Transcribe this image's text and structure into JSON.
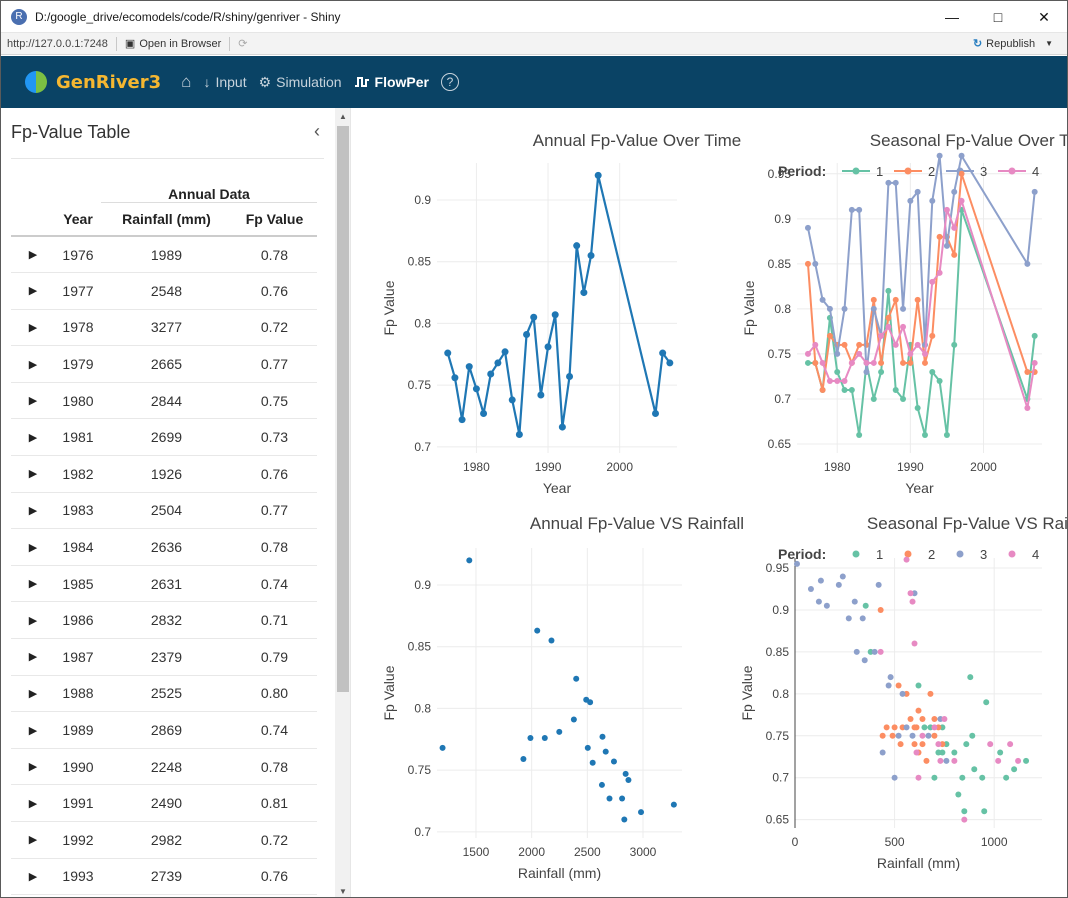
{
  "window": {
    "title": "D:/google_drive/ecomodels/code/R/shiny/genriver - Shiny",
    "url": "http://127.0.0.1:7248",
    "open_in_browser": "Open in Browser",
    "republish": "Republish"
  },
  "navbar": {
    "brand_a": "Gen",
    "brand_b": "River3",
    "items": [
      {
        "label": "Input",
        "icon": "arrow-down-icon"
      },
      {
        "label": "Simulation",
        "icon": "gears-icon"
      },
      {
        "label": "FlowPer",
        "icon": "wave-icon",
        "active": true
      }
    ],
    "help": "?"
  },
  "sidebar": {
    "title": "Fp-Value Table",
    "table": {
      "group_header": "Annual Data",
      "columns": [
        "Year",
        "Rainfall (mm)",
        "Fp Value"
      ],
      "rows": [
        [
          "1976",
          "1989",
          "0.78"
        ],
        [
          "1977",
          "2548",
          "0.76"
        ],
        [
          "1978",
          "3277",
          "0.72"
        ],
        [
          "1979",
          "2665",
          "0.77"
        ],
        [
          "1980",
          "2844",
          "0.75"
        ],
        [
          "1981",
          "2699",
          "0.73"
        ],
        [
          "1982",
          "1926",
          "0.76"
        ],
        [
          "1983",
          "2504",
          "0.77"
        ],
        [
          "1984",
          "2636",
          "0.78"
        ],
        [
          "1985",
          "2631",
          "0.74"
        ],
        [
          "1986",
          "2832",
          "0.71"
        ],
        [
          "1987",
          "2379",
          "0.79"
        ],
        [
          "1988",
          "2525",
          "0.80"
        ],
        [
          "1989",
          "2869",
          "0.74"
        ],
        [
          "1990",
          "2248",
          "0.78"
        ],
        [
          "1991",
          "2490",
          "0.81"
        ],
        [
          "1992",
          "2982",
          "0.72"
        ],
        [
          "1993",
          "2739",
          "0.76"
        ]
      ]
    }
  },
  "colors": {
    "navbar": "#0a4365",
    "line_blue": "#1f77b4",
    "p1": "#66c2a5",
    "p2": "#fc8d62",
    "p3": "#8da0cb",
    "p4": "#e78ac3"
  },
  "chart_data": [
    {
      "id": "annual_time",
      "type": "line",
      "title": "Annual Fp-Value Over Time",
      "xlabel": "Year",
      "ylabel": "Fp Value",
      "xlim": [
        1974.5,
        2008
      ],
      "ylim": [
        0.695,
        0.93
      ],
      "xticks": [
        1980,
        1990,
        2000
      ],
      "yticks": [
        0.7,
        0.75,
        0.8,
        0.85,
        0.9
      ],
      "x": [
        1976,
        1977,
        1978,
        1979,
        1980,
        1981,
        1982,
        1983,
        1984,
        1985,
        1986,
        1987,
        1988,
        1989,
        1990,
        1991,
        1992,
        1993,
        1994,
        1995,
        1996,
        1997,
        2005,
        2006,
        2007
      ],
      "y": [
        0.776,
        0.756,
        0.722,
        0.765,
        0.747,
        0.727,
        0.759,
        0.768,
        0.777,
        0.738,
        0.71,
        0.791,
        0.805,
        0.742,
        0.781,
        0.807,
        0.716,
        0.757,
        0.863,
        0.825,
        0.855,
        0.92,
        0.727,
        0.776,
        0.768
      ]
    },
    {
      "id": "seasonal_time",
      "type": "line",
      "title": "Seasonal Fp-Value Over Time",
      "xlabel": "Year",
      "ylabel": "Fp Value",
      "legend_title": "Period:",
      "xlim": [
        1974.5,
        2008
      ],
      "ylim": [
        0.64,
        0.962
      ],
      "xticks": [
        1980,
        1990,
        2000
      ],
      "yticks": [
        0.65,
        0.7,
        0.75,
        0.8,
        0.85,
        0.9,
        0.95
      ],
      "x": [
        1976,
        1977,
        1978,
        1979,
        1980,
        1981,
        1982,
        1983,
        1984,
        1985,
        1986,
        1987,
        1988,
        1989,
        1990,
        1991,
        1992,
        1993,
        1994,
        1995,
        1996,
        1997,
        2006,
        2007
      ],
      "series": [
        {
          "name": "1",
          "values": [
            0.74,
            0.74,
            0.71,
            0.79,
            0.73,
            0.71,
            0.71,
            0.66,
            0.74,
            0.7,
            0.73,
            0.82,
            0.71,
            0.7,
            0.76,
            0.69,
            0.66,
            0.73,
            0.72,
            0.66,
            0.76,
            0.91,
            0.7,
            0.77
          ]
        },
        {
          "name": "2",
          "values": [
            0.85,
            0.74,
            0.71,
            0.77,
            0.76,
            0.76,
            0.74,
            0.76,
            0.76,
            0.81,
            0.74,
            0.79,
            0.81,
            0.74,
            0.74,
            0.81,
            0.74,
            0.77,
            0.88,
            0.88,
            0.86,
            0.95,
            0.73,
            0.73
          ]
        },
        {
          "name": "3",
          "values": [
            0.89,
            0.85,
            0.81,
            0.8,
            0.75,
            0.8,
            0.91,
            0.91,
            0.73,
            0.8,
            0.77,
            0.94,
            0.94,
            0.8,
            0.92,
            0.93,
            0.76,
            0.92,
            0.97,
            0.87,
            0.93,
            0.97,
            0.85,
            0.93
          ]
        },
        {
          "name": "4",
          "values": [
            0.75,
            0.76,
            0.74,
            0.72,
            0.72,
            0.72,
            0.74,
            0.75,
            0.74,
            0.74,
            0.77,
            0.78,
            0.76,
            0.78,
            0.75,
            0.76,
            0.75,
            0.83,
            0.84,
            0.91,
            0.89,
            0.92,
            0.69,
            0.74
          ]
        }
      ]
    },
    {
      "id": "annual_rain",
      "type": "scatter",
      "title": "Annual Fp-Value VS Rainfall",
      "xlabel": "Rainfall (mm)",
      "ylabel": "Fp Value",
      "xlim": [
        1150,
        3350
      ],
      "ylim": [
        0.695,
        0.93
      ],
      "xticks": [
        1500,
        2000,
        2500,
        3000
      ],
      "yticks": [
        0.7,
        0.75,
        0.8,
        0.85,
        0.9
      ],
      "points": [
        [
          1200,
          0.768
        ],
        [
          1440,
          0.92
        ],
        [
          1926,
          0.759
        ],
        [
          1989,
          0.776
        ],
        [
          2050,
          0.863
        ],
        [
          2118,
          0.776
        ],
        [
          2178,
          0.855
        ],
        [
          2248,
          0.781
        ],
        [
          2379,
          0.791
        ],
        [
          2400,
          0.824
        ],
        [
          2490,
          0.807
        ],
        [
          2504,
          0.768
        ],
        [
          2525,
          0.805
        ],
        [
          2548,
          0.756
        ],
        [
          2631,
          0.738
        ],
        [
          2636,
          0.777
        ],
        [
          2665,
          0.765
        ],
        [
          2699,
          0.727
        ],
        [
          2739,
          0.757
        ],
        [
          2812,
          0.727
        ],
        [
          2832,
          0.71
        ],
        [
          2844,
          0.747
        ],
        [
          2869,
          0.742
        ],
        [
          2982,
          0.716
        ],
        [
          3277,
          0.722
        ]
      ]
    },
    {
      "id": "seasonal_rain",
      "type": "scatter",
      "title": "Seasonal Fp-Value VS Rainfall",
      "xlabel": "Rainfall (mm)",
      "ylabel": "Fp Value",
      "legend_title": "Period:",
      "xlim": [
        0,
        1240
      ],
      "ylim": [
        0.64,
        0.962
      ],
      "xticks": [
        0,
        500,
        1000
      ],
      "yticks": [
        0.65,
        0.7,
        0.75,
        0.8,
        0.85,
        0.9,
        0.95
      ],
      "series": [
        {
          "name": "1",
          "points": [
            [
              355,
              0.905
            ],
            [
              380,
              0.85
            ],
            [
              620,
              0.81
            ],
            [
              650,
              0.76
            ],
            [
              700,
              0.7
            ],
            [
              720,
              0.73
            ],
            [
              740,
              0.73
            ],
            [
              760,
              0.74
            ],
            [
              800,
              0.73
            ],
            [
              820,
              0.68
            ],
            [
              840,
              0.7
            ],
            [
              850,
              0.66
            ],
            [
              860,
              0.74
            ],
            [
              880,
              0.82
            ],
            [
              890,
              0.75
            ],
            [
              900,
              0.71
            ],
            [
              940,
              0.7
            ],
            [
              950,
              0.66
            ],
            [
              960,
              0.79
            ],
            [
              1030,
              0.73
            ],
            [
              1060,
              0.7
            ],
            [
              1100,
              0.71
            ],
            [
              1160,
              0.72
            ],
            [
              680,
              0.76
            ],
            [
              740,
              0.76
            ]
          ]
        },
        {
          "name": "2",
          "points": [
            [
              430,
              0.9
            ],
            [
              440,
              0.75
            ],
            [
              460,
              0.76
            ],
            [
              490,
              0.75
            ],
            [
              500,
              0.76
            ],
            [
              520,
              0.81
            ],
            [
              530,
              0.74
            ],
            [
              560,
              0.8
            ],
            [
              580,
              0.77
            ],
            [
              600,
              0.76
            ],
            [
              610,
              0.76
            ],
            [
              620,
              0.78
            ],
            [
              640,
              0.77
            ],
            [
              660,
              0.72
            ],
            [
              680,
              0.8
            ],
            [
              700,
              0.77
            ],
            [
              700,
              0.75
            ],
            [
              720,
              0.76
            ],
            [
              740,
              0.74
            ],
            [
              540,
              0.76
            ],
            [
              620,
              0.73
            ],
            [
              600,
              0.74
            ],
            [
              640,
              0.74
            ]
          ]
        },
        {
          "name": "3",
          "points": [
            [
              10,
              0.955
            ],
            [
              80,
              0.925
            ],
            [
              120,
              0.91
            ],
            [
              130,
              0.935
            ],
            [
              160,
              0.905
            ],
            [
              220,
              0.93
            ],
            [
              240,
              0.94
            ],
            [
              270,
              0.89
            ],
            [
              300,
              0.91
            ],
            [
              310,
              0.85
            ],
            [
              340,
              0.89
            ],
            [
              350,
              0.84
            ],
            [
              400,
              0.85
            ],
            [
              420,
              0.93
            ],
            [
              440,
              0.73
            ],
            [
              470,
              0.81
            ],
            [
              480,
              0.82
            ],
            [
              500,
              0.7
            ],
            [
              520,
              0.75
            ],
            [
              540,
              0.8
            ],
            [
              560,
              0.76
            ],
            [
              590,
              0.75
            ],
            [
              600,
              0.92
            ],
            [
              670,
              0.75
            ],
            [
              730,
              0.77
            ],
            [
              760,
              0.72
            ]
          ]
        },
        {
          "name": "4",
          "points": [
            [
              430,
              0.85
            ],
            [
              560,
              0.96
            ],
            [
              580,
              0.92
            ],
            [
              590,
              0.91
            ],
            [
              600,
              0.86
            ],
            [
              610,
              0.73
            ],
            [
              620,
              0.7
            ],
            [
              640,
              0.75
            ],
            [
              700,
              0.76
            ],
            [
              720,
              0.74
            ],
            [
              730,
              0.72
            ],
            [
              750,
              0.77
            ],
            [
              800,
              0.72
            ],
            [
              850,
              0.65
            ],
            [
              980,
              0.74
            ],
            [
              1020,
              0.72
            ],
            [
              1080,
              0.74
            ],
            [
              1120,
              0.72
            ]
          ]
        }
      ]
    }
  ]
}
